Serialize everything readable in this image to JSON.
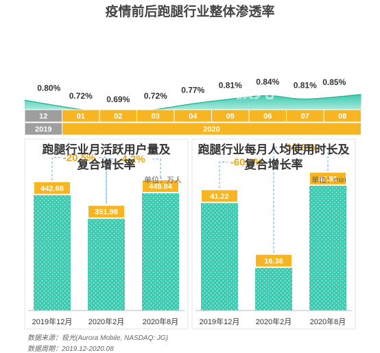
{
  "title": "疫情前后跑腿行业整体渗透率",
  "watermark": {
    "text": "URORA",
    "cn": "极光"
  },
  "colors": {
    "teal": "#3cc9b0",
    "teal_light": "#bff1e6",
    "orange": "#f7b524",
    "orange_dark": "#e9a313",
    "gray": "#9e9e9e",
    "dash": "#4aa3df"
  },
  "chart_data": [
    {
      "type": "area",
      "title": "疫情前后跑腿行业整体渗透率",
      "categories": [
        "12",
        "01",
        "02",
        "03",
        "04",
        "05",
        "06",
        "07",
        "08"
      ],
      "values": [
        0.8,
        0.72,
        0.69,
        0.72,
        0.77,
        0.81,
        0.84,
        0.81,
        0.85
      ],
      "value_labels": [
        "0.80%",
        "0.72%",
        "0.69%",
        "0.72%",
        "0.77%",
        "0.81%",
        "0.84%",
        "0.81%",
        "0.85%"
      ],
      "years": [
        {
          "label": "2019",
          "span": 1
        },
        {
          "label": "2020",
          "span": 8
        }
      ],
      "grid": false
    },
    {
      "type": "bar",
      "title_lines": [
        "跑腿行业月活跃用户量及",
        "复合增长率"
      ],
      "unit": "单位：万人",
      "categories": [
        "2019年12月",
        "2020年2月",
        "2020年8月"
      ],
      "values": [
        442.68,
        351.98,
        449.84
      ],
      "value_labels": [
        "442.68",
        "351.98",
        "449.84"
      ],
      "growth": [
        "-20.5%",
        "4.2%"
      ],
      "ylim": [
        0,
        500
      ]
    },
    {
      "type": "bar",
      "title_lines": [
        "跑腿行业每月人均使用时长及",
        "复合增长率"
      ],
      "unit": "单位：min",
      "categories": [
        "2019年12月",
        "2020年2月",
        "2020年8月"
      ],
      "values": [
        41.22,
        16.38,
        47.91
      ],
      "value_labels": [
        "41.22",
        "16.38",
        "47.91"
      ],
      "growth": [
        "-60.3%",
        "19.6%"
      ],
      "ylim": [
        0,
        50
      ]
    }
  ],
  "sources": {
    "line1": "数据来源：极光(Aurora Mobile, NASDAQ: JG)",
    "line2": "数据周期：2019.12-2020.08"
  }
}
